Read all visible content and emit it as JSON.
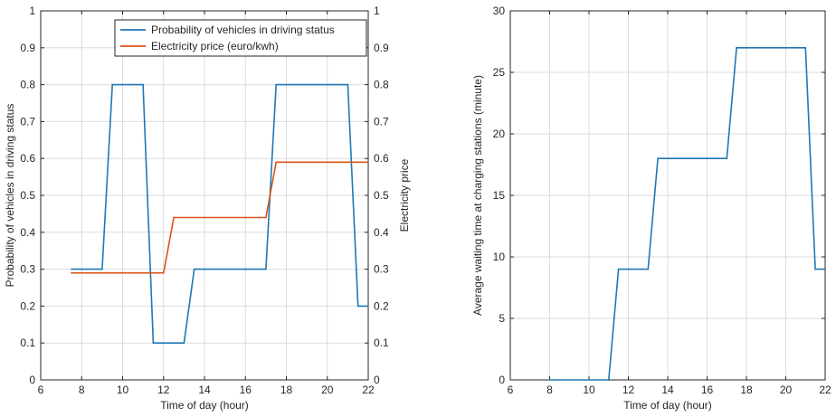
{
  "chart_data": [
    {
      "type": "line",
      "xlabel": "Time of day (hour)",
      "ylabel": "Probability of vehicles in driving status",
      "y2label": "Electricity price",
      "xlim": [
        6,
        22
      ],
      "ylim": [
        0,
        1
      ],
      "y2lim": [
        0,
        1
      ],
      "xticks": [
        "6",
        "8",
        "10",
        "12",
        "14",
        "16",
        "18",
        "20",
        "22"
      ],
      "yticks": [
        "0",
        "0.1",
        "0.2",
        "0.3",
        "0.4",
        "0.5",
        "0.6",
        "0.7",
        "0.8",
        "0.9",
        "1"
      ],
      "grid": true,
      "legend": "top-right",
      "series": [
        {
          "name": "Probability of vehicles in driving status",
          "color": "#1f77b4",
          "x": [
            7.5,
            9,
            9.5,
            11,
            11.5,
            13,
            13.5,
            17,
            17.5,
            21,
            21.5,
            22
          ],
          "y": [
            0.3,
            0.3,
            0.8,
            0.8,
            0.1,
            0.1,
            0.3,
            0.3,
            0.8,
            0.8,
            0.2,
            0.2
          ]
        },
        {
          "name": "Electricity price (euro/kwh)",
          "color": "#d95319",
          "x": [
            7.5,
            12,
            12.5,
            17,
            17.5,
            22
          ],
          "y": [
            0.29,
            0.29,
            0.44,
            0.44,
            0.59,
            0.59
          ]
        }
      ]
    },
    {
      "type": "line",
      "xlabel": "Time of day (hour)",
      "ylabel": "Average waiting time at charging stations (minute)",
      "xlim": [
        6,
        22
      ],
      "ylim": [
        0,
        30
      ],
      "xticks": [
        "6",
        "8",
        "10",
        "12",
        "14",
        "16",
        "18",
        "20",
        "22"
      ],
      "yticks": [
        "0",
        "5",
        "10",
        "15",
        "20",
        "25",
        "30"
      ],
      "grid": true,
      "series": [
        {
          "color": "#1f77b4",
          "x": [
            8,
            11,
            11.5,
            13,
            13.5,
            17,
            17.5,
            21,
            21.5,
            22
          ],
          "y": [
            0,
            0,
            9,
            9,
            18,
            18,
            27,
            27,
            9,
            9
          ]
        }
      ]
    }
  ]
}
